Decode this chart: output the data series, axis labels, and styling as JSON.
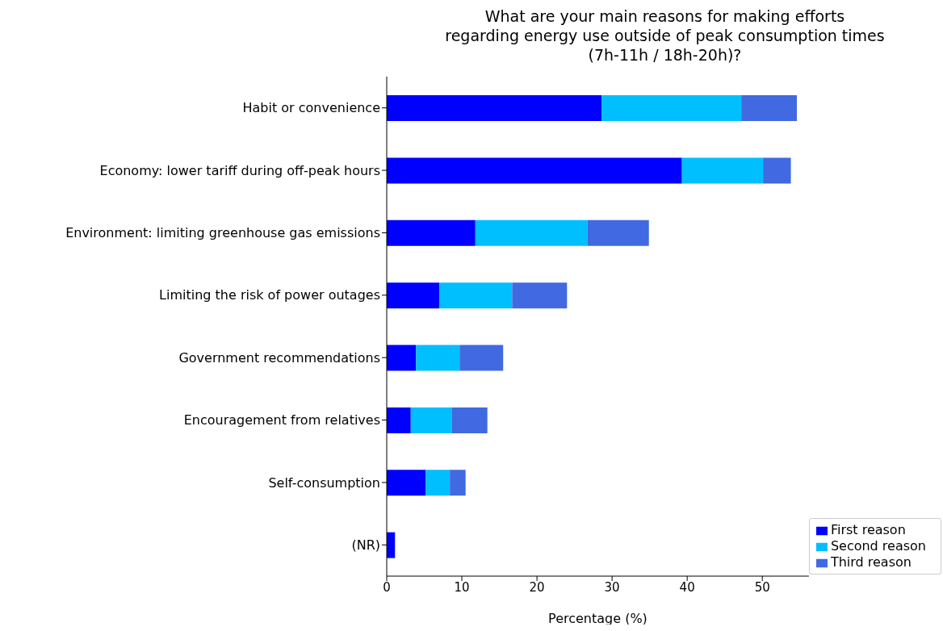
{
  "chart_data": {
    "type": "bar",
    "orientation": "horizontal",
    "stacked": true,
    "title": "What are your main reasons for making efforts\nregarding energy use outside of peak consumption times\n(7h-11h / 18h-20h)?",
    "xlabel": "Percentage (%)",
    "categories": [
      "Habit or convenience",
      "Economy: lower tariff during off-peak hours",
      "Environment: limiting greenhouse gas emissions",
      "Limiting the risk of power outages",
      "Government recommendations",
      "Encouragement from relatives",
      "Self-consumption",
      "(NR)"
    ],
    "series": [
      {
        "name": "First reason",
        "color": "#0000ff",
        "values": [
          28.6,
          39.3,
          11.8,
          7.0,
          3.9,
          3.2,
          5.2,
          1.1
        ]
      },
      {
        "name": "Second reason",
        "color": "#00bfff",
        "values": [
          18.6,
          10.8,
          14.9,
          9.7,
          5.8,
          5.5,
          3.2,
          null
        ]
      },
      {
        "name": "Third reason",
        "color": "#4169e1",
        "values": [
          7.4,
          3.7,
          8.2,
          7.3,
          5.8,
          4.7,
          2.1,
          null
        ]
      }
    ],
    "xlim": [
      0,
      56.2
    ],
    "xticks": [
      0,
      10,
      20,
      30,
      40,
      50
    ],
    "grid": false,
    "legend": "bottom right"
  }
}
